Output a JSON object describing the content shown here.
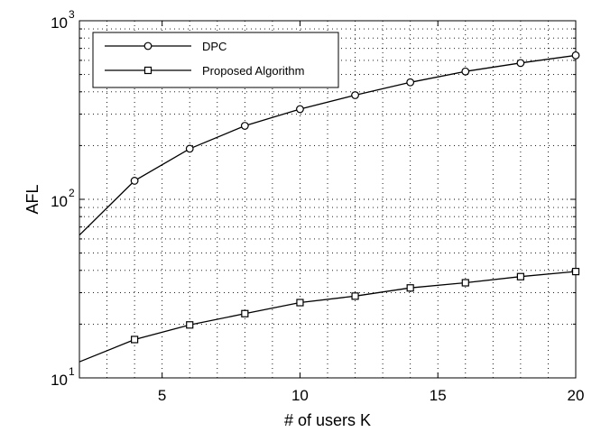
{
  "chart_data": {
    "type": "line",
    "title": "",
    "xlabel": "# of users K",
    "ylabel": "AFL",
    "xlim": [
      2,
      20
    ],
    "ylim": [
      10,
      1000
    ],
    "yscale": "log",
    "grid": true,
    "legend_position": "top-left",
    "x_ticks": [
      5,
      10,
      15,
      20
    ],
    "y_ticks": [
      {
        "base": "10",
        "exp": "1"
      },
      {
        "base": "10",
        "exp": "2"
      },
      {
        "base": "10",
        "exp": "3"
      }
    ],
    "series": [
      {
        "name": "DPC",
        "marker": "circle",
        "color": "#000000",
        "x": [
          2,
          4,
          6,
          8,
          10,
          12,
          14,
          16,
          18,
          20
        ],
        "y": [
          63,
          127,
          192,
          258,
          320,
          383,
          452,
          520,
          580,
          640
        ]
      },
      {
        "name": "Proposed Algorithm",
        "marker": "square",
        "color": "#000000",
        "x": [
          2,
          4,
          6,
          8,
          10,
          12,
          14,
          16,
          18,
          20
        ],
        "y": [
          12.3,
          16.4,
          19.8,
          22.9,
          26.4,
          28.7,
          31.9,
          34.1,
          36.9,
          39.4
        ]
      }
    ]
  }
}
